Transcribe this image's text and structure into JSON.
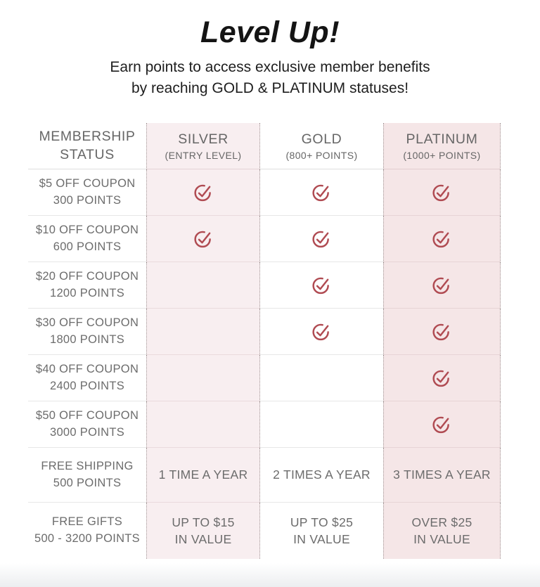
{
  "header": {
    "title": "Level Up!",
    "subtitle_line1": "Earn points to access exclusive member benefits",
    "subtitle_line2": "by reaching GOLD & PLATINUM statuses!"
  },
  "table": {
    "corner": {
      "line1": "MEMBERSHIP",
      "line2": "STATUS"
    },
    "columns": [
      {
        "name": "SILVER",
        "qualifier": "(ENTRY LEVEL)"
      },
      {
        "name": "GOLD",
        "qualifier": "(800+ POINTS)"
      },
      {
        "name": "PLATINUM",
        "qualifier": "(1000+ POINTS)"
      }
    ],
    "rows": [
      {
        "benefit": "$5 OFF COUPON",
        "points": "300 POINTS",
        "silver": "check",
        "gold": "check",
        "platinum": "check"
      },
      {
        "benefit": "$10 OFF COUPON",
        "points": "600 POINTS",
        "silver": "check",
        "gold": "check",
        "platinum": "check"
      },
      {
        "benefit": "$20 OFF COUPON",
        "points": "1200 POINTS",
        "silver": "",
        "gold": "check",
        "platinum": "check"
      },
      {
        "benefit": "$30 OFF COUPON",
        "points": "1800 POINTS",
        "silver": "",
        "gold": "check",
        "platinum": "check"
      },
      {
        "benefit": "$40 OFF COUPON",
        "points": "2400 POINTS",
        "silver": "",
        "gold": "",
        "platinum": "check"
      },
      {
        "benefit": "$50 OFF COUPON",
        "points": "3000 POINTS",
        "silver": "",
        "gold": "",
        "platinum": "check"
      },
      {
        "benefit": "FREE SHIPPING",
        "points": "500 POINTS",
        "silver": [
          "1 TIME A YEAR"
        ],
        "gold": [
          "2 TIMES A YEAR"
        ],
        "platinum": [
          "3 TIMES A YEAR"
        ]
      },
      {
        "benefit": "FREE GIFTS",
        "points": "500 - 3200 POINTS",
        "silver": [
          "UP TO $15",
          "IN VALUE"
        ],
        "gold": [
          "UP TO $25",
          "IN VALUE"
        ],
        "platinum": [
          "OVER $25",
          "IN VALUE"
        ]
      }
    ]
  },
  "icons": {
    "check": "circled-check"
  },
  "colors": {
    "check": "#b04b52",
    "silver_bg": "#f8eef0",
    "platinum_bg": "#f5e6e7",
    "text_gray": "#6c6c6c"
  }
}
